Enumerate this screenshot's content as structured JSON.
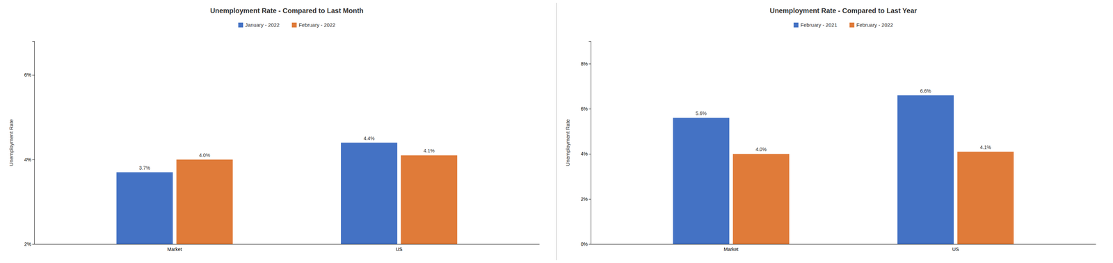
{
  "chart_data": [
    {
      "type": "bar",
      "title": "Unemployment Rate - Compared to Last Month",
      "ylabel": "Unemployment Rate",
      "categories": [
        "Market",
        "US"
      ],
      "series": [
        {
          "name": "January - 2022",
          "color": "#4472C4",
          "values": [
            3.7,
            4.4
          ],
          "value_labels": [
            "3.7%",
            "4.4%"
          ]
        },
        {
          "name": "February - 2022",
          "color": "#E07B39",
          "values": [
            4.0,
            4.1
          ],
          "value_labels": [
            "4.0%",
            "4.1%"
          ]
        }
      ],
      "ylim": [
        2,
        6.8
      ],
      "yticks": [
        {
          "value": 2,
          "label": "2%"
        },
        {
          "value": 4,
          "label": "4%"
        },
        {
          "value": 6,
          "label": "6%"
        }
      ],
      "grid": false,
      "legend": "top",
      "data_labels": true
    },
    {
      "type": "bar",
      "title": "Unemployment Rate - Compared to Last Year",
      "ylabel": "Unemployment Rate",
      "categories": [
        "Market",
        "US"
      ],
      "series": [
        {
          "name": "February - 2021",
          "color": "#4472C4",
          "values": [
            5.6,
            6.6
          ],
          "value_labels": [
            "5.6%",
            "6.6%"
          ]
        },
        {
          "name": "February - 2022",
          "color": "#E07B39",
          "values": [
            4.0,
            4.1
          ],
          "value_labels": [
            "4.0%",
            "4.1%"
          ]
        }
      ],
      "ylim": [
        0,
        9.0
      ],
      "yticks": [
        {
          "value": 0,
          "label": "0%"
        },
        {
          "value": 2,
          "label": "2%"
        },
        {
          "value": 4,
          "label": "4%"
        },
        {
          "value": 6,
          "label": "6%"
        },
        {
          "value": 8,
          "label": "8%"
        }
      ],
      "grid": false,
      "legend": "top",
      "data_labels": true
    }
  ]
}
